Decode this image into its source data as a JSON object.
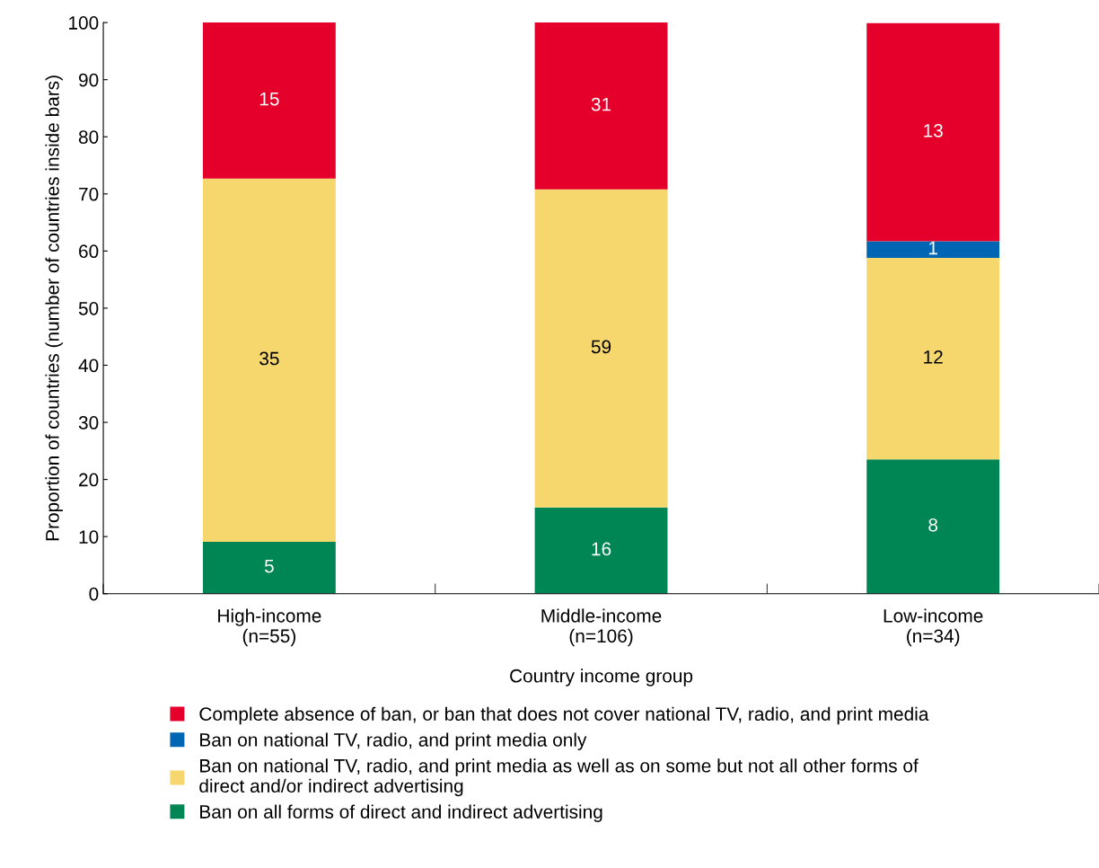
{
  "chart_data": {
    "type": "bar",
    "stacked": true,
    "categories": [
      "High-income\n(n=55)",
      "Middle-income\n(n=106)",
      "Low-income\n(n=34)"
    ],
    "xlabel": "Country income group",
    "ylabel": "Proportion of countries (number of countries inside bars)",
    "ylim": [
      0,
      100
    ],
    "yticks": [
      0,
      10,
      20,
      30,
      40,
      50,
      60,
      70,
      80,
      90,
      100
    ],
    "series": [
      {
        "name": "Ban on all forms of direct and indirect advertising",
        "color": "#008554",
        "values": [
          9.1,
          15.1,
          23.5
        ]
      },
      {
        "name": "Ban on national TV, radio, and print media as well as on some but not all other forms of\ndirect and/or indirect advertising",
        "color": "#f5d76e",
        "values": [
          63.6,
          55.7,
          35.3
        ]
      },
      {
        "name": "Ban on national TV, radio, and print media only",
        "color": "#0066b3",
        "values": [
          0,
          0,
          2.9
        ]
      },
      {
        "name": "Complete absence of ban, or ban that does not cover national TV, radio, and print media",
        "color": "#e4002b",
        "values": [
          27.3,
          29.2,
          38.2
        ]
      }
    ],
    "annotations": [
      "5",
      "35",
      "15",
      "16",
      "59",
      "31",
      "8",
      "12",
      "1",
      "13"
    ],
    "grid": false,
    "legend": "bottom"
  }
}
